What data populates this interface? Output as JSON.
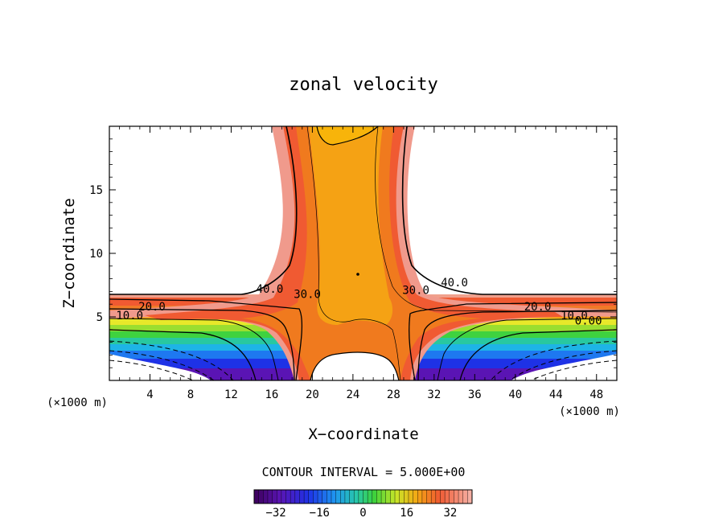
{
  "chart_data": {
    "type": "contour",
    "title": "zonal velocity",
    "xlabel": "X−coordinate",
    "ylabel": "Z−coordinate",
    "x_unit_left": "(×1000 m)",
    "x_unit_right": "(×1000 m)",
    "xlim": [
      0,
      50
    ],
    "ylim": [
      0,
      20
    ],
    "x_ticks": [
      4,
      8,
      12,
      16,
      20,
      24,
      28,
      32,
      36,
      40,
      44,
      48
    ],
    "y_ticks": [
      5,
      10,
      15
    ],
    "contour_interval_text": "CONTOUR INTERVAL = 5.000E+00",
    "contour_labels": [
      {
        "text": "40.0",
        "x": 15.8,
        "y": 6.9
      },
      {
        "text": "30.0",
        "x": 19.5,
        "y": 6.5
      },
      {
        "text": "30.0",
        "x": 30.2,
        "y": 6.8
      },
      {
        "text": "40.0",
        "x": 34.0,
        "y": 7.4
      },
      {
        "text": "20.0",
        "x": 4.2,
        "y": 5.5
      },
      {
        "text": "10.0",
        "x": 2.0,
        "y": 4.8
      },
      {
        "text": "20.0",
        "x": 42.2,
        "y": 5.5
      },
      {
        "text": "10.0",
        "x": 45.8,
        "y": 4.8
      },
      {
        "text": "0.00",
        "x": 47.2,
        "y": 4.4
      }
    ],
    "colorbar": {
      "min": -40,
      "max": 40,
      "tick_values": [
        -32,
        -16,
        0,
        16,
        32
      ],
      "tick_labels": [
        "−32",
        "−16",
        "0",
        "16",
        "32"
      ]
    },
    "colors": {
      "level_30_40": "#f05a32",
      "level_40_plus": "#f08e8e",
      "core": "#f5a214",
      "mid": "#f07a1e",
      "high_negative": "#e8e82a",
      "zero": "#3fd23f",
      "negative": "#1e8cf0",
      "deep_negative": "#5a14b4"
    }
  }
}
